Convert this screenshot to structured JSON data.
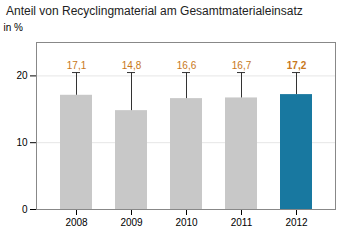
{
  "chart_data": {
    "type": "bar",
    "title": "Anteil von Recyclingmaterial am Gesamtmaterialeinsatz",
    "y_label": "in %",
    "categories": [
      "2008",
      "2009",
      "2010",
      "2011",
      "2012"
    ],
    "values": [
      17.1,
      14.8,
      16.6,
      16.7,
      17.2
    ],
    "value_labels": [
      "17,1",
      "14,8",
      "16,6",
      "16,7",
      "17,2"
    ],
    "error_values": [
      20.5,
      20.5,
      20.5,
      20.5,
      20.5
    ],
    "colors": [
      "#c8c8c8",
      "#c8c8c8",
      "#c8c8c8",
      "#c8c8c8",
      "#1878a0"
    ],
    "ylim": [
      0,
      25
    ],
    "yticks": [
      0,
      10,
      20
    ],
    "grid": true,
    "data_labels": true
  }
}
